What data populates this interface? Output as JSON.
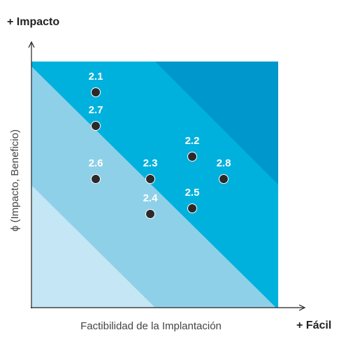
{
  "axes": {
    "y_title": "+ Impacto",
    "y_label": "ϕ (Impacto, Beneficio)",
    "x_label": "Factibilidad de la Implantación",
    "x_title": "+ Fácil"
  },
  "points": [
    {
      "label": "2.1"
    },
    {
      "label": "2.7"
    },
    {
      "label": "2.6"
    },
    {
      "label": "2.3"
    },
    {
      "label": "2.4"
    },
    {
      "label": "2.2"
    },
    {
      "label": "2.8"
    },
    {
      "label": "2.5"
    }
  ]
}
